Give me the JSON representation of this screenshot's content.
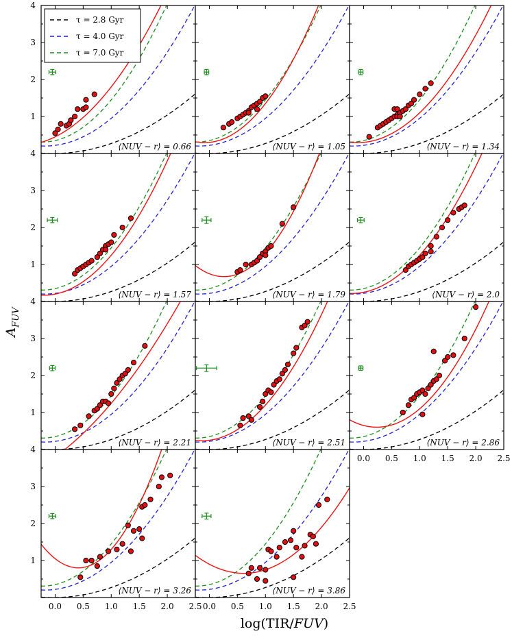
{
  "figure": {
    "ylabel": "A_{FUV}",
    "xlabel": "log(TIR/FUV)",
    "xlim": [
      -0.25,
      2.5
    ],
    "ylim": [
      0,
      4
    ]
  },
  "legend": {
    "position": "top-left of first panel",
    "entries": [
      {
        "label": "τ = 2.8 Gyr",
        "color": "#000000"
      },
      {
        "label": "τ = 4.0 Gyr",
        "color": "#1f1fdd"
      },
      {
        "label": "τ = 7.0 Gyr",
        "color": "#1a8c1a"
      }
    ]
  },
  "colors": {
    "fit": "#ee1111",
    "points_fill": "#dd1111",
    "points_edge": "#000000",
    "errorbar": "#1a8c1a"
  },
  "chart_data": {
    "type": "scatter",
    "title": "",
    "xlabel": "log(TIR/FUV)",
    "ylabel": "A_FUV",
    "xlim": [
      -0.25,
      2.5
    ],
    "ylim": [
      0,
      4
    ],
    "xticks": [
      "0.0",
      "0.5",
      "1.0",
      "1.5",
      "2.0",
      "2.5"
    ],
    "yticks": [
      "1",
      "2",
      "3",
      "4"
    ],
    "model_curves": [
      {
        "name": "τ = 2.8 Gyr",
        "style": "dashed",
        "color": "#000000",
        "coef": [
          0.0,
          0.02,
          0.25
        ]
      },
      {
        "name": "τ = 4.0 Gyr",
        "style": "dashed",
        "color": "#1f1fdd",
        "coef": [
          0.22,
          0.2,
          0.53
        ]
      },
      {
        "name": "τ = 7.0 Gyr",
        "style": "dashed",
        "color": "#1a8c1a",
        "coef": [
          0.35,
          0.35,
          0.75
        ]
      }
    ],
    "panels": [
      {
        "label": "⟨NUV − r⟩ = 0.66",
        "fit": [
          0.45,
          0.75,
          0.6
        ],
        "err": {
          "x": -0.05,
          "y": 2.2,
          "dx": 0.06,
          "dy": 0.07
        },
        "points": [
          [
            0.0,
            0.55
          ],
          [
            0.05,
            0.65
          ],
          [
            0.1,
            0.8
          ],
          [
            0.2,
            0.75
          ],
          [
            0.25,
            0.8
          ],
          [
            0.28,
            0.9
          ],
          [
            0.35,
            1.0
          ],
          [
            0.4,
            1.2
          ],
          [
            0.5,
            1.2
          ],
          [
            0.55,
            1.25
          ],
          [
            0.55,
            1.45
          ],
          [
            0.7,
            1.6
          ]
        ]
      },
      {
        "label": "⟨NUV − r⟩ = 1.05",
        "fit": [
          0.3,
          0.15,
          0.9
        ],
        "err": {
          "x": -0.05,
          "y": 2.2,
          "dx": 0.04,
          "dy": 0.07
        },
        "points": [
          [
            0.25,
            0.7
          ],
          [
            0.35,
            0.8
          ],
          [
            0.4,
            0.85
          ],
          [
            0.5,
            0.95
          ],
          [
            0.55,
            1.0
          ],
          [
            0.6,
            1.05
          ],
          [
            0.65,
            1.1
          ],
          [
            0.7,
            1.15
          ],
          [
            0.75,
            1.25
          ],
          [
            0.8,
            1.3
          ],
          [
            0.85,
            1.35
          ],
          [
            0.9,
            1.4
          ],
          [
            0.95,
            1.5
          ],
          [
            1.0,
            1.55
          ],
          [
            0.7,
            1.1
          ],
          [
            0.85,
            1.2
          ]
        ]
      },
      {
        "label": "⟨NUV − r⟩ = 1.34",
        "fit": [
          0.3,
          0.15,
          0.65
        ],
        "err": {
          "x": -0.05,
          "y": 2.2,
          "dx": 0.04,
          "dy": 0.07
        },
        "points": [
          [
            0.1,
            0.45
          ],
          [
            0.25,
            0.7
          ],
          [
            0.3,
            0.75
          ],
          [
            0.35,
            0.8
          ],
          [
            0.4,
            0.85
          ],
          [
            0.45,
            0.9
          ],
          [
            0.5,
            0.95
          ],
          [
            0.55,
            1.0
          ],
          [
            0.6,
            1.05
          ],
          [
            0.65,
            1.1
          ],
          [
            0.7,
            1.15
          ],
          [
            0.75,
            1.2
          ],
          [
            0.6,
            1.0
          ],
          [
            0.65,
            1.0
          ],
          [
            0.8,
            1.3
          ],
          [
            0.85,
            1.35
          ],
          [
            0.9,
            1.45
          ],
          [
            1.0,
            1.6
          ],
          [
            1.1,
            1.75
          ],
          [
            1.2,
            1.9
          ],
          [
            0.55,
            1.2
          ],
          [
            0.6,
            1.2
          ]
        ]
      },
      {
        "label": "⟨NUV − r⟩ = 1.57",
        "fit": [
          0.2,
          0.3,
          0.75
        ],
        "err": {
          "x": -0.05,
          "y": 2.2,
          "dx": 0.09,
          "dy": 0.07
        },
        "points": [
          [
            0.35,
            0.75
          ],
          [
            0.4,
            0.85
          ],
          [
            0.45,
            0.9
          ],
          [
            0.5,
            0.95
          ],
          [
            0.55,
            1.0
          ],
          [
            0.6,
            1.05
          ],
          [
            0.65,
            1.1
          ],
          [
            0.75,
            1.2
          ],
          [
            0.8,
            1.3
          ],
          [
            0.85,
            1.4
          ],
          [
            0.9,
            1.5
          ],
          [
            0.95,
            1.55
          ],
          [
            1.0,
            1.6
          ],
          [
            0.9,
            1.4
          ],
          [
            1.05,
            1.8
          ],
          [
            1.2,
            2.0
          ],
          [
            1.35,
            2.25
          ]
        ]
      },
      {
        "label": "⟨NUV − r⟩ = 1.79",
        "fit": [
          0.75,
          -0.6,
          1.15
        ],
        "err": {
          "x": -0.05,
          "y": 2.2,
          "dx": 0.08,
          "dy": 0.09
        },
        "points": [
          [
            0.5,
            0.8
          ],
          [
            0.55,
            0.85
          ],
          [
            0.65,
            1.0
          ],
          [
            0.75,
            1.0
          ],
          [
            0.8,
            1.05
          ],
          [
            0.85,
            1.1
          ],
          [
            0.9,
            1.2
          ],
          [
            0.95,
            1.3
          ],
          [
            1.0,
            1.35
          ],
          [
            1.05,
            1.45
          ],
          [
            1.1,
            1.5
          ],
          [
            1.0,
            1.25
          ],
          [
            1.3,
            2.1
          ],
          [
            1.5,
            2.55
          ]
        ]
      },
      {
        "label": "⟨NUV − r⟩ = 2.0",
        "fit": [
          0.25,
          0.3,
          0.7
        ],
        "err": {
          "x": -0.05,
          "y": 2.2,
          "dx": 0.06,
          "dy": 0.07
        },
        "points": [
          [
            0.75,
            0.85
          ],
          [
            0.8,
            0.95
          ],
          [
            0.85,
            1.0
          ],
          [
            0.9,
            1.05
          ],
          [
            0.95,
            1.1
          ],
          [
            1.0,
            1.15
          ],
          [
            1.05,
            1.2
          ],
          [
            1.1,
            1.3
          ],
          [
            1.2,
            1.5
          ],
          [
            1.3,
            1.75
          ],
          [
            1.4,
            2.0
          ],
          [
            1.5,
            2.2
          ],
          [
            1.6,
            2.4
          ],
          [
            1.7,
            2.5
          ],
          [
            1.75,
            2.55
          ],
          [
            1.8,
            2.6
          ],
          [
            1.2,
            1.35
          ]
        ]
      },
      {
        "label": "⟨NUV − r⟩ = 2.21",
        "fit": [
          -0.2,
          1.1,
          0.35
        ],
        "err": {
          "x": -0.05,
          "y": 2.2,
          "dx": 0.05,
          "dy": 0.07
        },
        "points": [
          [
            0.35,
            0.55
          ],
          [
            0.45,
            0.65
          ],
          [
            0.6,
            0.9
          ],
          [
            0.7,
            1.05
          ],
          [
            0.75,
            1.1
          ],
          [
            0.8,
            1.2
          ],
          [
            0.85,
            1.3
          ],
          [
            0.9,
            1.3
          ],
          [
            0.95,
            1.25
          ],
          [
            1.0,
            1.5
          ],
          [
            1.05,
            1.65
          ],
          [
            1.1,
            1.8
          ],
          [
            1.15,
            1.9
          ],
          [
            1.2,
            2.0
          ],
          [
            1.25,
            2.05
          ],
          [
            1.3,
            2.15
          ],
          [
            1.4,
            2.35
          ],
          [
            1.6,
            2.8
          ]
        ]
      },
      {
        "label": "⟨NUV − r⟩ = 2.51",
        "fit": [
          0.25,
          0.2,
          0.75
        ],
        "err": {
          "x": -0.05,
          "y": 2.2,
          "dx": 0.18,
          "dy": 0.09
        },
        "points": [
          [
            0.55,
            0.65
          ],
          [
            0.6,
            0.85
          ],
          [
            0.7,
            0.9
          ],
          [
            0.75,
            0.8
          ],
          [
            0.9,
            1.15
          ],
          [
            0.95,
            1.3
          ],
          [
            1.0,
            1.5
          ],
          [
            1.05,
            1.6
          ],
          [
            1.1,
            1.55
          ],
          [
            1.15,
            1.75
          ],
          [
            1.2,
            1.85
          ],
          [
            1.25,
            1.9
          ],
          [
            1.3,
            2.05
          ],
          [
            1.35,
            2.15
          ],
          [
            1.4,
            2.3
          ],
          [
            1.5,
            2.6
          ],
          [
            1.55,
            2.75
          ],
          [
            1.65,
            3.3
          ],
          [
            1.7,
            3.35
          ],
          [
            1.75,
            3.45
          ]
        ]
      },
      {
        "label": "⟨NUV − r⟩ = 2.86",
        "fit": [
          0.65,
          -0.4,
          0.85
        ],
        "err": {
          "x": -0.05,
          "y": 2.2,
          "dx": 0.04,
          "dy": 0.06
        },
        "points": [
          [
            0.7,
            1.0
          ],
          [
            0.8,
            1.2
          ],
          [
            0.85,
            1.35
          ],
          [
            0.9,
            1.4
          ],
          [
            0.95,
            1.5
          ],
          [
            1.0,
            1.55
          ],
          [
            1.05,
            1.6
          ],
          [
            1.1,
            1.5
          ],
          [
            1.15,
            1.65
          ],
          [
            1.2,
            1.75
          ],
          [
            1.25,
            1.85
          ],
          [
            1.3,
            1.9
          ],
          [
            1.35,
            2.0
          ],
          [
            1.45,
            2.4
          ],
          [
            1.5,
            2.5
          ],
          [
            1.6,
            2.55
          ],
          [
            1.8,
            3.0
          ],
          [
            2.0,
            3.85
          ],
          [
            1.05,
            0.95
          ],
          [
            1.25,
            2.65
          ]
        ]
      },
      {
        "label": "⟨NUV − r⟩ = 3.26",
        "fit": [
          1.05,
          -1.2,
          1.45
        ],
        "err": {
          "x": -0.05,
          "y": 2.2,
          "dx": 0.06,
          "dy": 0.07
        },
        "points": [
          [
            0.45,
            0.55
          ],
          [
            0.55,
            1.0
          ],
          [
            0.65,
            1.0
          ],
          [
            0.75,
            0.85
          ],
          [
            0.8,
            1.1
          ],
          [
            0.95,
            1.25
          ],
          [
            1.1,
            1.3
          ],
          [
            1.2,
            1.45
          ],
          [
            1.3,
            1.95
          ],
          [
            1.4,
            1.8
          ],
          [
            1.5,
            1.85
          ],
          [
            1.55,
            2.45
          ],
          [
            1.6,
            2.5
          ],
          [
            1.7,
            2.65
          ],
          [
            1.85,
            3.0
          ],
          [
            1.9,
            3.25
          ],
          [
            2.05,
            3.3
          ],
          [
            1.35,
            1.25
          ],
          [
            1.55,
            1.6
          ]
        ]
      },
      {
        "label": "⟨NUV − r⟩ = 3.86",
        "fit": [
          0.9,
          -0.8,
          0.65
        ],
        "err": {
          "x": -0.05,
          "y": 2.2,
          "dx": 0.08,
          "dy": 0.08
        },
        "points": [
          [
            0.7,
            0.65
          ],
          [
            0.75,
            0.8
          ],
          [
            0.85,
            0.5
          ],
          [
            0.9,
            0.8
          ],
          [
            1.0,
            0.75
          ],
          [
            1.05,
            1.3
          ],
          [
            1.1,
            1.25
          ],
          [
            1.2,
            1.1
          ],
          [
            1.25,
            1.35
          ],
          [
            1.35,
            1.5
          ],
          [
            1.45,
            1.55
          ],
          [
            1.5,
            1.8
          ],
          [
            1.55,
            1.35
          ],
          [
            1.65,
            1.1
          ],
          [
            1.7,
            1.4
          ],
          [
            1.8,
            1.7
          ],
          [
            1.85,
            1.65
          ],
          [
            1.9,
            1.45
          ],
          [
            2.1,
            2.65
          ],
          [
            1.95,
            2.5
          ],
          [
            1.5,
            0.55
          ],
          [
            1.0,
            0.45
          ]
        ]
      }
    ]
  }
}
